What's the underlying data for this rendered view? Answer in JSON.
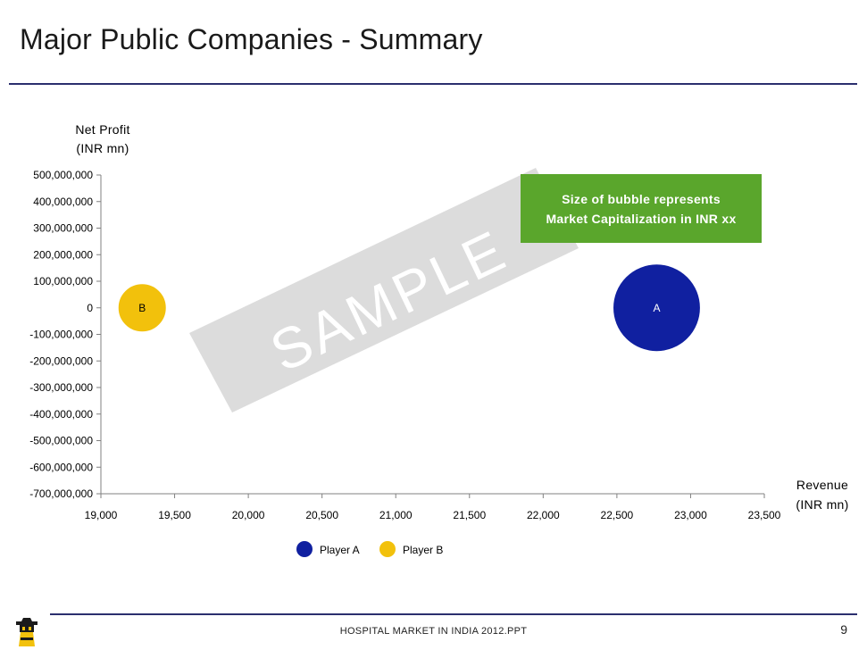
{
  "slide": {
    "title": "Major Public Companies - Summary",
    "footer": "HOSPITAL MARKET IN INDIA 2012.PPT",
    "page_number": "9",
    "watermark": "SAMPLE",
    "callout_line1": "Size of bubble represents",
    "callout_line2": "Market Capitalization in INR xx"
  },
  "colors": {
    "player_a": "#1020a0",
    "player_b": "#f2c10c",
    "callout": "#5aa62c",
    "rule": "#2b2f6e",
    "watermark_band": "#dcdcdc"
  },
  "chart_data": {
    "type": "bubble",
    "title": "",
    "ylabel_line1": "Net Profit",
    "ylabel_line2": "(INR mn)",
    "xlabel_line1": "Revenue",
    "xlabel_line2": "(INR mn)",
    "xlim": [
      19000,
      23500
    ],
    "ylim": [
      -700000000,
      500000000
    ],
    "x_ticks": [
      19000,
      19500,
      20000,
      20500,
      21000,
      21500,
      22000,
      22500,
      23000,
      23500
    ],
    "x_tick_labels": [
      "19,000",
      "19,500",
      "20,000",
      "20,500",
      "21,000",
      "21,500",
      "22,000",
      "22,500",
      "23,000",
      "23,500"
    ],
    "y_ticks": [
      500000000,
      400000000,
      300000000,
      200000000,
      100000000,
      0,
      -100000000,
      -200000000,
      -300000000,
      -400000000,
      -500000000,
      -600000000,
      -700000000
    ],
    "y_tick_labels": [
      "500,000,000",
      "400,000,000",
      "300,000,000",
      "200,000,000",
      "100,000,000",
      "0",
      "-100,000,000",
      "-200,000,000",
      "-300,000,000",
      "-400,000,000",
      "-500,000,000",
      "-600,000,000",
      "-700,000,000"
    ],
    "grid": false,
    "legend_position": "bottom",
    "series": [
      {
        "name": "Player A",
        "label": "A",
        "x": 22770,
        "y": 0,
        "size": 3.4,
        "color": "#1020a0",
        "label_color": "#ffffff"
      },
      {
        "name": "Player B",
        "label": "B",
        "x": 19280,
        "y": 0,
        "size": 1.0,
        "color": "#f2c10c",
        "label_color": "#000000"
      }
    ]
  }
}
